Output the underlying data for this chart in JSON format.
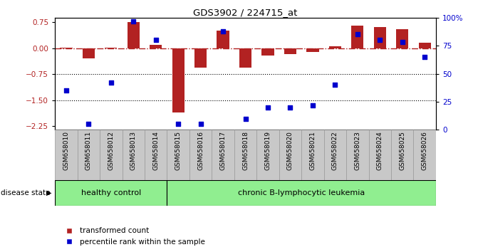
{
  "title": "GDS3902 / 224715_at",
  "samples": [
    "GSM658010",
    "GSM658011",
    "GSM658012",
    "GSM658013",
    "GSM658014",
    "GSM658015",
    "GSM658016",
    "GSM658017",
    "GSM658018",
    "GSM658019",
    "GSM658020",
    "GSM658021",
    "GSM658022",
    "GSM658023",
    "GSM658024",
    "GSM658025",
    "GSM658026"
  ],
  "red_bars": [
    0.01,
    -0.3,
    0.01,
    0.75,
    0.1,
    -1.85,
    -0.55,
    0.5,
    -0.55,
    -0.22,
    -0.18,
    -0.1,
    0.05,
    0.65,
    0.6,
    0.55,
    0.15
  ],
  "blue_pcts": [
    35,
    5,
    42,
    97,
    80,
    5,
    5,
    88,
    10,
    20,
    20,
    22,
    40,
    85,
    80,
    78,
    65
  ],
  "ylim_left": [
    -2.35,
    0.88
  ],
  "ylim_right": [
    0,
    100
  ],
  "yticks_left": [
    0.75,
    0.0,
    -0.75,
    -1.5,
    -2.25
  ],
  "yticks_right": [
    100,
    75,
    50,
    25,
    0
  ],
  "ytick_right_labels": [
    "100%",
    "75",
    "50",
    "25",
    "0"
  ],
  "dotted_lines": [
    -0.75,
    -1.5
  ],
  "n_healthy": 5,
  "n_total": 17,
  "bar_color": "#B22222",
  "dot_color": "#0000CD",
  "group_color": "#90EE90",
  "tick_bg_color": "#C8C8C8",
  "tick_edge_color": "#999999",
  "legend_red": "transformed count",
  "legend_blue": "percentile rank within the sample",
  "group_label_healthy": "healthy control",
  "group_label_leukemia": "chronic B-lymphocytic leukemia",
  "disease_state_label": "disease state"
}
